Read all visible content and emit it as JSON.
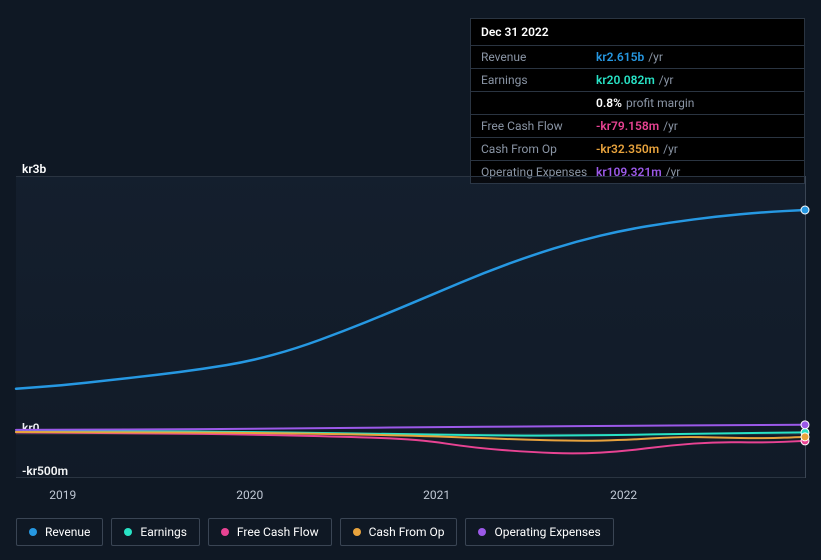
{
  "chart": {
    "type": "line",
    "background_color": "#0f1824",
    "plot_background": "rgba(50,70,100,0.12)",
    "grid_color": "#2a3441",
    "y_axis": {
      "min": -500,
      "max": 3000,
      "ticks": [
        {
          "value": 3000,
          "label": "kr3b"
        },
        {
          "value": 0,
          "label": "kr0"
        },
        {
          "value": -500,
          "label": "-kr500m"
        }
      ],
      "label_color": "#ffffff",
      "label_fontsize": 12
    },
    "x_axis": {
      "ticks": [
        "2019",
        "2020",
        "2021",
        "2022"
      ],
      "label_color": "#c0c8d4",
      "label_fontsize": 12,
      "domain_start": 2018.75,
      "domain_end": 2022.97
    },
    "hover_x": 2022.97,
    "series": [
      {
        "id": "revenue",
        "name": "Revenue",
        "color": "#2698e2",
        "stroke_width": 2.5,
        "data": [
          [
            2018.75,
            530
          ],
          [
            2019.0,
            570
          ],
          [
            2019.25,
            630
          ],
          [
            2019.5,
            690
          ],
          [
            2019.75,
            760
          ],
          [
            2020.0,
            850
          ],
          [
            2020.25,
            1000
          ],
          [
            2020.5,
            1200
          ],
          [
            2020.75,
            1420
          ],
          [
            2021.0,
            1650
          ],
          [
            2021.25,
            1880
          ],
          [
            2021.5,
            2080
          ],
          [
            2021.75,
            2250
          ],
          [
            2022.0,
            2380
          ],
          [
            2022.25,
            2470
          ],
          [
            2022.5,
            2540
          ],
          [
            2022.75,
            2590
          ],
          [
            2022.97,
            2615
          ]
        ]
      },
      {
        "id": "earnings",
        "name": "Earnings",
        "color": "#28e2c5",
        "stroke_width": 2,
        "data": [
          [
            2018.75,
            30
          ],
          [
            2019.5,
            35
          ],
          [
            2020.0,
            25
          ],
          [
            2020.5,
            10
          ],
          [
            2021.0,
            -5
          ],
          [
            2021.5,
            -20
          ],
          [
            2022.0,
            -10
          ],
          [
            2022.5,
            10
          ],
          [
            2022.97,
            20
          ]
        ]
      },
      {
        "id": "fcf",
        "name": "Free Cash Flow",
        "color": "#e84393",
        "stroke_width": 2,
        "data": [
          [
            2018.75,
            20
          ],
          [
            2019.5,
            10
          ],
          [
            2020.0,
            -5
          ],
          [
            2020.5,
            -30
          ],
          [
            2020.9,
            -60
          ],
          [
            2021.2,
            -160
          ],
          [
            2021.5,
            -210
          ],
          [
            2021.75,
            -230
          ],
          [
            2022.0,
            -200
          ],
          [
            2022.25,
            -130
          ],
          [
            2022.5,
            -90
          ],
          [
            2022.75,
            -100
          ],
          [
            2022.97,
            -79
          ]
        ]
      },
      {
        "id": "cfo",
        "name": "Cash From Op",
        "color": "#e8a33d",
        "stroke_width": 2,
        "data": [
          [
            2018.75,
            25
          ],
          [
            2019.5,
            20
          ],
          [
            2020.0,
            15
          ],
          [
            2020.5,
            0
          ],
          [
            2021.0,
            -25
          ],
          [
            2021.4,
            -60
          ],
          [
            2021.75,
            -80
          ],
          [
            2022.0,
            -70
          ],
          [
            2022.3,
            -30
          ],
          [
            2022.5,
            -40
          ],
          [
            2022.75,
            -50
          ],
          [
            2022.97,
            -32
          ]
        ]
      },
      {
        "id": "opex",
        "name": "Operating Expenses",
        "color": "#9b59e8",
        "stroke_width": 2,
        "data": [
          [
            2018.75,
            50
          ],
          [
            2019.5,
            55
          ],
          [
            2020.0,
            62
          ],
          [
            2020.5,
            72
          ],
          [
            2021.0,
            82
          ],
          [
            2021.5,
            90
          ],
          [
            2022.0,
            98
          ],
          [
            2022.5,
            104
          ],
          [
            2022.97,
            109
          ]
        ]
      }
    ]
  },
  "tooltip": {
    "date": "Dec 31 2022",
    "rows": [
      {
        "label": "Revenue",
        "value": "kr2.615b",
        "suffix": "/yr",
        "color": "#2698e2"
      },
      {
        "label": "Earnings",
        "value": "kr20.082m",
        "suffix": "/yr",
        "color": "#28e2c5"
      },
      {
        "label": "",
        "value": "0.8%",
        "suffix": "profit margin",
        "color": "#ffffff"
      },
      {
        "label": "Free Cash Flow",
        "value": "-kr79.158m",
        "suffix": "/yr",
        "color": "#e84393"
      },
      {
        "label": "Cash From Op",
        "value": "-kr32.350m",
        "suffix": "/yr",
        "color": "#e8a33d"
      },
      {
        "label": "Operating Expenses",
        "value": "kr109.321m",
        "suffix": "/yr",
        "color": "#9b59e8"
      }
    ]
  },
  "legend": {
    "items": [
      {
        "id": "revenue",
        "label": "Revenue",
        "color": "#2698e2"
      },
      {
        "id": "earnings",
        "label": "Earnings",
        "color": "#28e2c5"
      },
      {
        "id": "fcf",
        "label": "Free Cash Flow",
        "color": "#e84393"
      },
      {
        "id": "cfo",
        "label": "Cash From Op",
        "color": "#e8a33d"
      },
      {
        "id": "opex",
        "label": "Operating Expenses",
        "color": "#9b59e8"
      }
    ]
  }
}
